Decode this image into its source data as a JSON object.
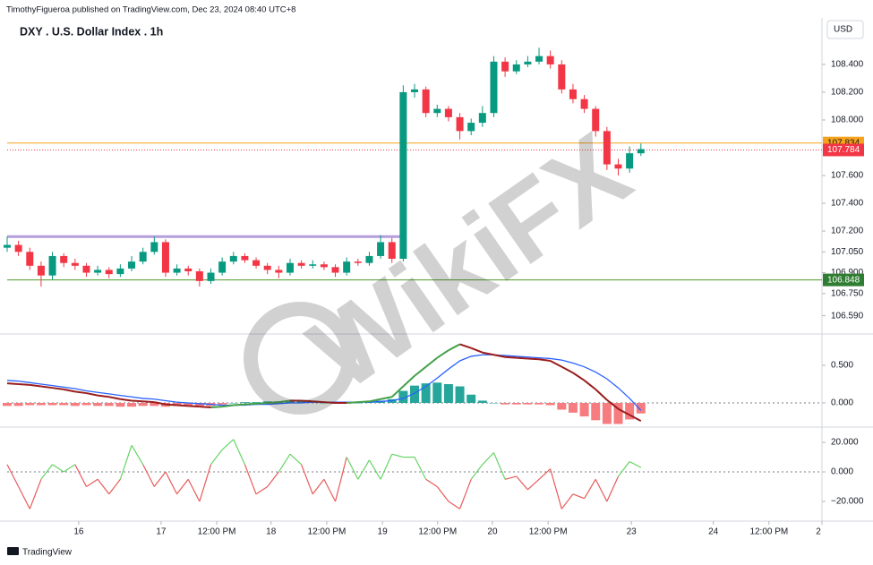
{
  "header": {
    "publisher": "TimothyFigueroa published on TradingView.com, Dec 23, 2024 08:40 UTC+8",
    "currency": "USD"
  },
  "watermark": "WikiFX",
  "footer": {
    "brand": "TradingView"
  },
  "chart_data": [
    {
      "type": "candlestick",
      "title": "DXY . U.S. Dollar Index . 1h",
      "up_color": "#089981",
      "down_color": "#f23645",
      "xlim": [
        0,
        180
      ],
      "x": [
        0,
        2.5,
        5,
        7.5,
        10,
        12.5,
        15,
        17.5,
        20,
        22.5,
        25,
        27.5,
        30,
        32.5,
        35,
        37.5,
        40,
        42.5,
        45,
        47.5,
        50,
        52.5,
        55,
        57.5,
        60,
        62.5,
        65,
        67.5,
        70,
        72.5,
        75,
        77.5,
        80,
        82.5,
        85,
        87.5,
        90,
        92.5,
        95,
        97.5,
        100,
        102.5,
        105,
        107.5,
        110,
        112.5,
        115,
        117.5,
        120,
        122.5,
        125,
        127.5,
        130,
        132.5,
        135,
        137.5,
        140
      ],
      "open": [
        107.08,
        107.1,
        107.05,
        106.95,
        106.88,
        107.02,
        106.97,
        106.95,
        106.9,
        106.92,
        106.89,
        106.93,
        106.98,
        107.05,
        107.12,
        106.9,
        106.93,
        106.91,
        106.84,
        106.9,
        106.98,
        107.02,
        106.99,
        106.95,
        106.92,
        106.9,
        106.97,
        106.95,
        106.96,
        106.94,
        106.9,
        106.98,
        106.97,
        107.02,
        107.12,
        107.0,
        108.2,
        108.22,
        108.05,
        108.08,
        108.02,
        107.92,
        107.98,
        108.05,
        108.42,
        108.35,
        108.4,
        108.42,
        108.46,
        108.4,
        108.22,
        108.15,
        108.08,
        107.92,
        107.68,
        107.65,
        107.76
      ],
      "high": [
        107.16,
        107.13,
        107.08,
        106.98,
        107.05,
        107.04,
        107.0,
        106.97,
        106.95,
        106.94,
        106.96,
        107.02,
        107.08,
        107.16,
        107.14,
        106.96,
        106.95,
        106.93,
        106.93,
        107.01,
        107.05,
        107.04,
        107.01,
        106.97,
        106.95,
        107.0,
        106.99,
        106.99,
        106.98,
        106.96,
        107.01,
        107.0,
        107.05,
        107.17,
        107.15,
        108.25,
        108.26,
        108.24,
        108.11,
        108.1,
        108.05,
        108.01,
        108.1,
        108.46,
        108.45,
        108.43,
        108.46,
        108.52,
        108.5,
        108.43,
        108.26,
        108.18,
        108.1,
        107.95,
        107.72,
        107.81,
        107.83
      ],
      "low": [
        107.05,
        107.02,
        106.92,
        106.8,
        106.85,
        106.94,
        106.92,
        106.87,
        106.88,
        106.86,
        106.87,
        106.91,
        106.96,
        107.03,
        106.87,
        106.88,
        106.88,
        106.8,
        106.82,
        106.88,
        106.96,
        106.97,
        106.93,
        106.89,
        106.86,
        106.88,
        106.93,
        106.93,
        106.92,
        106.87,
        106.88,
        106.95,
        106.95,
        107.0,
        106.97,
        106.98,
        108.16,
        108.02,
        108.02,
        107.99,
        107.86,
        107.89,
        107.95,
        108.02,
        108.31,
        108.33,
        108.38,
        108.4,
        108.37,
        108.19,
        108.12,
        108.05,
        107.88,
        107.64,
        107.6,
        107.62,
        107.74
      ],
      "close": [
        107.1,
        107.05,
        106.95,
        106.88,
        107.02,
        106.97,
        106.95,
        106.9,
        106.92,
        106.89,
        106.93,
        106.98,
        107.05,
        107.12,
        106.9,
        106.93,
        106.91,
        106.84,
        106.9,
        106.98,
        107.02,
        106.99,
        106.95,
        106.92,
        106.9,
        106.97,
        106.95,
        106.96,
        106.94,
        106.9,
        106.98,
        106.97,
        107.02,
        107.12,
        107.0,
        108.2,
        108.22,
        108.05,
        108.08,
        108.02,
        107.92,
        107.98,
        108.05,
        108.42,
        108.35,
        108.4,
        108.42,
        108.46,
        108.4,
        108.22,
        108.15,
        108.08,
        107.92,
        107.68,
        107.65,
        107.76,
        107.79
      ],
      "ylim": [
        106.465,
        108.735
      ],
      "yticks": [
        {
          "value": 108.4,
          "label": "108.400"
        },
        {
          "value": 108.2,
          "label": "108.200"
        },
        {
          "value": 108.0,
          "label": "108.000"
        },
        {
          "value": 107.6,
          "label": "107.600"
        },
        {
          "value": 107.4,
          "label": "107.400"
        },
        {
          "value": 107.2,
          "label": "107.200"
        },
        {
          "value": 107.05,
          "label": "107.050"
        },
        {
          "value": 106.9,
          "label": "106.900"
        },
        {
          "value": 106.75,
          "label": "106.750"
        },
        {
          "value": 106.59,
          "label": "106.590"
        }
      ],
      "levels": [
        {
          "value": 107.834,
          "color": "#f7a21b",
          "label_color": "#f7a21b",
          "text_color": "#131722"
        },
        {
          "value": 107.784,
          "color": "#f23645",
          "label_color": "#f23645",
          "text_color": "#ffffff",
          "dotted": true
        },
        {
          "value": 106.848,
          "color": "#4c9a2a",
          "label_color": "#2e7d32",
          "text_color": "#ffffff"
        },
        {
          "value": 107.16,
          "color": "#b39ddb",
          "x_end": 87
        }
      ]
    },
    {
      "type": "macd",
      "xlim": [
        0,
        180
      ],
      "x": [
        0,
        2.5,
        5,
        7.5,
        10,
        12.5,
        15,
        17.5,
        20,
        22.5,
        25,
        27.5,
        30,
        32.5,
        35,
        37.5,
        40,
        42.5,
        45,
        47.5,
        50,
        52.5,
        55,
        57.5,
        60,
        62.5,
        65,
        67.5,
        70,
        72.5,
        75,
        77.5,
        80,
        82.5,
        85,
        87.5,
        90,
        92.5,
        95,
        97.5,
        100,
        102.5,
        105,
        107.5,
        110,
        112.5,
        115,
        117.5,
        120,
        122.5,
        125,
        127.5,
        130,
        132.5,
        135,
        137.5,
        140
      ],
      "ylim": [
        -0.298,
        0.893
      ],
      "yticks": [
        {
          "value": 0.5,
          "label": "0.500"
        },
        {
          "value": 0,
          "label": "0.000"
        }
      ],
      "histogram": {
        "values": [
          -0.04,
          -0.04,
          -0.03,
          -0.03,
          -0.03,
          -0.03,
          -0.04,
          -0.03,
          -0.04,
          -0.04,
          -0.05,
          -0.05,
          -0.04,
          -0.04,
          -0.05,
          -0.04,
          -0.04,
          -0.04,
          -0.04,
          -0.02,
          0,
          0.01,
          0.01,
          0.02,
          0.02,
          0.03,
          0.03,
          0.01,
          0,
          -0.01,
          -0.01,
          0,
          0.01,
          0.03,
          0.05,
          0.16,
          0.23,
          0.26,
          0.27,
          0.25,
          0.22,
          0.11,
          0.03,
          0,
          -0.02,
          -0.02,
          -0.02,
          -0.02,
          -0.03,
          -0.09,
          -0.13,
          -0.18,
          -0.23,
          -0.28,
          -0.28,
          -0.22,
          -0.14
        ],
        "color": "#26a69a",
        "negative_color": "#f77c80"
      },
      "signal": {
        "values": [
          0.3,
          0.29,
          0.27,
          0.25,
          0.23,
          0.21,
          0.19,
          0.16,
          0.14,
          0.12,
          0.1,
          0.08,
          0.06,
          0.05,
          0.03,
          0.01,
          0,
          -0.01,
          -0.02,
          -0.03,
          -0.03,
          -0.03,
          -0.02,
          -0.02,
          -0.01,
          0,
          0,
          0.01,
          0.01,
          0.01,
          0.01,
          0.01,
          0.01,
          0.02,
          0.03,
          0.06,
          0.13,
          0.22,
          0.33,
          0.45,
          0.56,
          0.62,
          0.64,
          0.64,
          0.63,
          0.62,
          0.61,
          0.6,
          0.59,
          0.57,
          0.53,
          0.48,
          0.41,
          0.32,
          0.2,
          0.06,
          -0.1
        ],
        "color": "#2962ff"
      },
      "macd": {
        "values": [
          0.26,
          0.25,
          0.24,
          0.22,
          0.2,
          0.18,
          0.15,
          0.13,
          0.1,
          0.08,
          0.05,
          0.03,
          0.02,
          0.01,
          -0.02,
          -0.03,
          -0.04,
          -0.05,
          -0.06,
          -0.05,
          -0.03,
          -0.02,
          -0.01,
          0,
          0.01,
          0.03,
          0.03,
          0.02,
          0.01,
          0,
          0,
          0.01,
          0.02,
          0.05,
          0.08,
          0.22,
          0.36,
          0.48,
          0.6,
          0.7,
          0.78,
          0.73,
          0.67,
          0.64,
          0.61,
          0.6,
          0.59,
          0.58,
          0.56,
          0.48,
          0.4,
          0.3,
          0.18,
          0.04,
          -0.08,
          -0.16,
          -0.24
        ],
        "color": "#9b1c1c",
        "up_color": "#43a047"
      }
    },
    {
      "type": "line",
      "xlim": [
        0,
        180
      ],
      "x": [
        0,
        2.5,
        5,
        7.5,
        10,
        12.5,
        15,
        17.5,
        20,
        22.5,
        25,
        27.5,
        30,
        32.5,
        35,
        37.5,
        40,
        42.5,
        45,
        47.5,
        50,
        52.5,
        55,
        57.5,
        60,
        62.5,
        65,
        67.5,
        70,
        72.5,
        75,
        77.5,
        80,
        82.5,
        85,
        87.5,
        90,
        92.5,
        95,
        97.5,
        100,
        102.5,
        105,
        107.5,
        110,
        112.5,
        115,
        117.5,
        120,
        122.5,
        125,
        127.5,
        130,
        132.5,
        135,
        137.5,
        140
      ],
      "values": [
        5,
        -10,
        -25,
        -5,
        5,
        0,
        5,
        -10,
        -5,
        -15,
        -5,
        18,
        5,
        -10,
        0,
        -15,
        -5,
        -20,
        5,
        15,
        22,
        5,
        -15,
        -10,
        0,
        12,
        5,
        -15,
        -5,
        -20,
        10,
        -5,
        8,
        -5,
        12,
        10,
        10,
        -5,
        -10,
        -20,
        -25,
        -5,
        5,
        13,
        -5,
        -3,
        -12,
        -5,
        2,
        -25,
        -15,
        -18,
        -5,
        -20,
        -3,
        7,
        3
      ],
      "color": "#66d466",
      "negative_color": "#e85a5a",
      "ylim": [
        -32.1,
        28.5
      ],
      "yticks": [
        {
          "value": 20,
          "label": "20.000"
        },
        {
          "value": 0,
          "label": "0.000"
        },
        {
          "value": -20,
          "label": "−20.000"
        }
      ],
      "xticks": [
        {
          "value": 15.8,
          "label": "16"
        },
        {
          "value": 34,
          "label": "17"
        },
        {
          "value": 46.3,
          "label": "12:00 PM"
        },
        {
          "value": 58.3,
          "label": "18"
        },
        {
          "value": 70.6,
          "label": "12:00 PM"
        },
        {
          "value": 82.9,
          "label": "19"
        },
        {
          "value": 95.1,
          "label": "12:00 PM"
        },
        {
          "value": 107.2,
          "label": "20"
        },
        {
          "value": 119.5,
          "label": "12:00 PM"
        },
        {
          "value": 137.9,
          "label": "23"
        },
        {
          "value": 156,
          "label": "24"
        },
        {
          "value": 168.3,
          "label": "12:00 PM"
        },
        {
          "value": 180,
          "label": "2"
        }
      ]
    }
  ]
}
